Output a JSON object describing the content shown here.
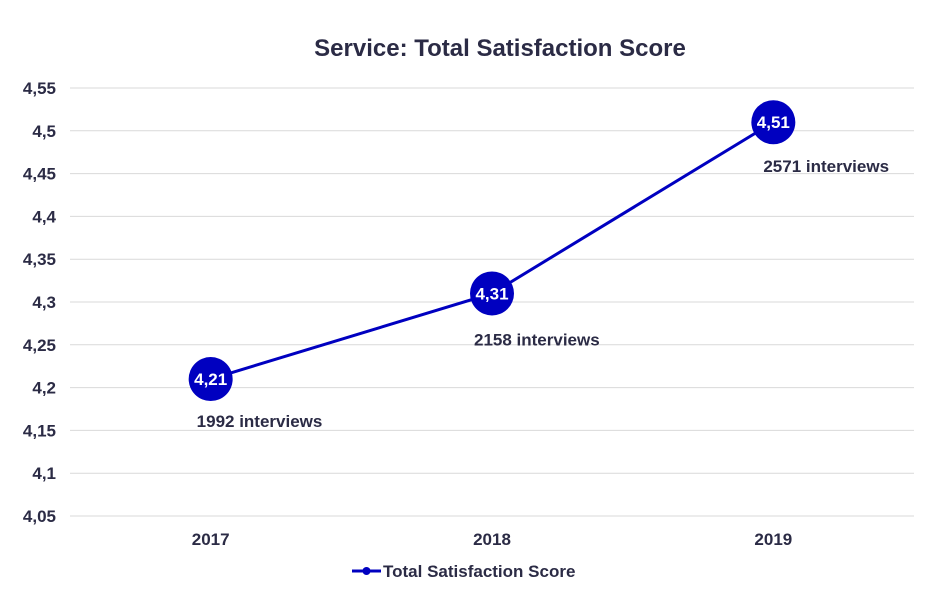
{
  "chart_data": {
    "type": "line",
    "title": "Service: Total Satisfaction Score",
    "xlabel": "",
    "ylabel": "",
    "categories": [
      "2017",
      "2018",
      "2019"
    ],
    "series": [
      {
        "name": "Total Satisfaction Score",
        "values": [
          4.21,
          4.31,
          4.51
        ],
        "data_labels": [
          "4,21",
          "4,31",
          "4,51"
        ],
        "color": "#0000c0"
      }
    ],
    "annotations": [
      "1992 interviews",
      "2158 interviews",
      "2571 interviews"
    ],
    "ylim": [
      4.05,
      4.55
    ],
    "yticks": [
      {
        "value": 4.55,
        "label": "4,55"
      },
      {
        "value": 4.5,
        "label": "4,5"
      },
      {
        "value": 4.45,
        "label": "4,45"
      },
      {
        "value": 4.4,
        "label": "4,4"
      },
      {
        "value": 4.35,
        "label": "4,35"
      },
      {
        "value": 4.3,
        "label": "4,3"
      },
      {
        "value": 4.25,
        "label": "4,25"
      },
      {
        "value": 4.2,
        "label": "4,2"
      },
      {
        "value": 4.15,
        "label": "4,15"
      },
      {
        "value": 4.1,
        "label": "4,1"
      },
      {
        "value": 4.05,
        "label": "4,05"
      }
    ],
    "grid": true,
    "legend_position": "bottom"
  }
}
